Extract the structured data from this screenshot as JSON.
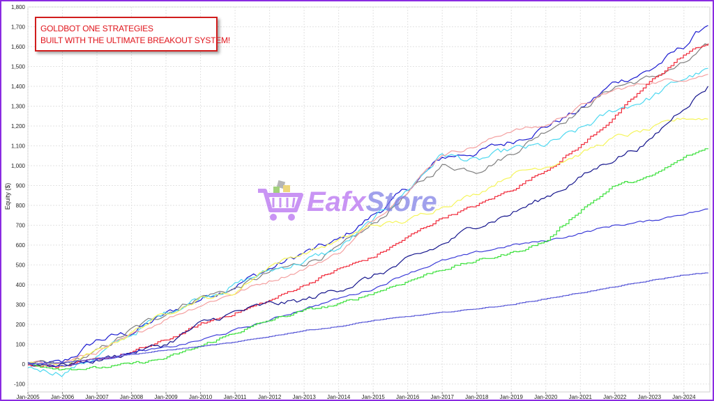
{
  "banner": {
    "line1": "GOLDBOT ONE STRATEGIES",
    "line2": "BUILT WITH THE ULTIMATE BREAKOUT SYSTEM!"
  },
  "watermark": {
    "part1": "Eafx",
    "part2": "Store"
  },
  "colors": {
    "frame": "#8a2be2",
    "banner_text": "#e0141b",
    "banner_border": "#d11c1c"
  },
  "chart_data": {
    "type": "line",
    "title": "",
    "xlabel": "",
    "ylabel": "Equity ($)",
    "ylim": [
      -140,
      1800
    ],
    "y_ticks": [
      -100,
      0,
      100,
      200,
      300,
      400,
      500,
      600,
      700,
      800,
      900,
      1000,
      1100,
      1200,
      1300,
      1400,
      1500,
      1600,
      1700,
      1800
    ],
    "y_tick_labels": [
      "-100",
      "0",
      "100",
      "200",
      "300",
      "400",
      "500",
      "600",
      "700",
      "800",
      "900",
      "1,000",
      "1,100",
      "1,200",
      "1,300",
      "1,400",
      "1,500",
      "1,600",
      "1,700",
      "1,800"
    ],
    "x_tick_labels": [
      "Jan-2005",
      "Jan-2006",
      "Jan-2007",
      "Jan-2008",
      "Jan-2009",
      "Jan-2010",
      "Jan-2011",
      "Jan-2012",
      "Jan-2013",
      "Jan-2014",
      "Jan-2015",
      "Jan-2016",
      "Jan-2017",
      "Jan-2018",
      "Jan-2019",
      "Jan-2020",
      "Jan-2021",
      "Jan-2022",
      "Jan-2023",
      "Jan-2024"
    ],
    "grid": true,
    "legend": "none",
    "x": [
      2005,
      2006,
      2007,
      2008,
      2009,
      2010,
      2011,
      2012,
      2013,
      2014,
      2015,
      2016,
      2017,
      2018,
      2019,
      2020,
      2021,
      2022,
      2023,
      2024,
      2024.7
    ],
    "series": [
      {
        "color": "#1a1ad0",
        "values": [
          0,
          0,
          120,
          160,
          250,
          330,
          400,
          480,
          560,
          620,
          750,
          880,
          1040,
          1070,
          1120,
          1200,
          1280,
          1420,
          1480,
          1600,
          1720
        ],
        "noise": 14
      },
      {
        "color": "#7f7f7f",
        "values": [
          0,
          -10,
          60,
          170,
          260,
          340,
          380,
          460,
          510,
          580,
          700,
          860,
          1000,
          980,
          1060,
          1180,
          1280,
          1400,
          1440,
          1510,
          1600
        ],
        "noise": 12
      },
      {
        "color": "#4dd8f0",
        "values": [
          -20,
          -40,
          40,
          150,
          260,
          340,
          400,
          470,
          520,
          580,
          720,
          880,
          1060,
          1020,
          1080,
          1100,
          1180,
          1280,
          1340,
          1440,
          1480
        ],
        "noise": 14
      },
      {
        "color": "#f4a0a0",
        "values": [
          0,
          10,
          60,
          140,
          230,
          300,
          360,
          420,
          480,
          560,
          720,
          880,
          1060,
          1100,
          1180,
          1200,
          1300,
          1380,
          1420,
          1440,
          1460
        ],
        "noise": 8
      },
      {
        "color": "#f02a3a",
        "values": [
          0,
          -10,
          20,
          60,
          120,
          200,
          260,
          320,
          400,
          480,
          540,
          640,
          740,
          800,
          880,
          980,
          1100,
          1250,
          1420,
          1560,
          1620
        ],
        "noise": 6,
        "step": true
      },
      {
        "color": "#f5f55a",
        "values": [
          0,
          -10,
          60,
          160,
          260,
          330,
          360,
          500,
          560,
          620,
          700,
          720,
          800,
          860,
          960,
          1000,
          1060,
          1140,
          1180,
          1240,
          1240
        ],
        "noise": 10
      },
      {
        "color": "#14148c",
        "values": [
          0,
          0,
          20,
          60,
          100,
          200,
          260,
          300,
          320,
          380,
          440,
          520,
          600,
          700,
          760,
          840,
          940,
          1040,
          1120,
          1300,
          1400
        ],
        "noise": 12
      },
      {
        "color": "#3c3cd8",
        "values": [
          10,
          -10,
          20,
          60,
          80,
          120,
          170,
          220,
          280,
          330,
          380,
          460,
          520,
          560,
          600,
          620,
          660,
          700,
          720,
          760,
          780
        ],
        "noise": 5
      },
      {
        "color": "#3ce03c",
        "values": [
          0,
          -20,
          -20,
          0,
          30,
          90,
          160,
          220,
          270,
          300,
          360,
          420,
          480,
          520,
          560,
          620,
          780,
          900,
          940,
          1040,
          1090
        ],
        "noise": 6,
        "step": true
      },
      {
        "color": "#5a5ad8",
        "values": [
          0,
          10,
          30,
          50,
          70,
          90,
          110,
          140,
          170,
          190,
          220,
          240,
          260,
          280,
          300,
          330,
          360,
          390,
          420,
          450,
          460
        ],
        "noise": 1.5,
        "step": true
      }
    ]
  }
}
